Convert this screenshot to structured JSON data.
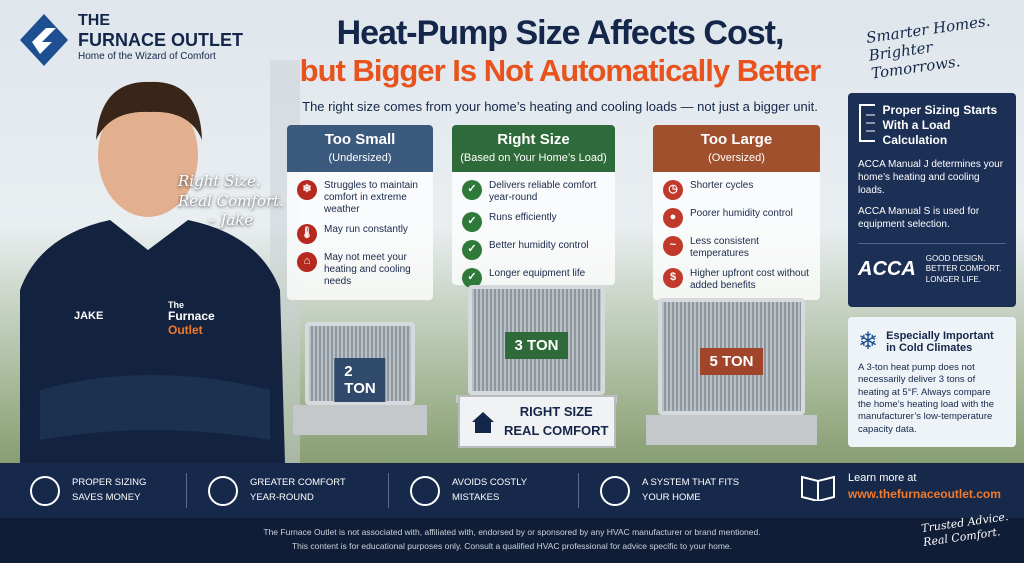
{
  "logo": {
    "line1": "THE",
    "line2": "FURNACE OUTLET",
    "tagline": "Home of the Wizard of Comfort"
  },
  "header": {
    "title_line1": "Heat-Pump Size Affects Cost,",
    "title_line2": "but Bigger Is Not Automatically Better",
    "subtitle": "The right size comes from your home’s heating and cooling loads — not just a bigger unit."
  },
  "slogan": [
    "Smarter Homes.",
    "Brighter Tomorrows."
  ],
  "quote": [
    "Right Size.",
    "Real Comfort.",
    "– Jake"
  ],
  "shirt": {
    "name": "JAKE",
    "brand": [
      "The",
      "Furnace",
      "Outlet"
    ]
  },
  "columns": [
    {
      "title": "Too Small",
      "subtitle": "(Undersized)",
      "items": [
        "Struggles to maintain comfort in extreme weather",
        "May run constantly",
        "May not meet your heating and cooling needs"
      ],
      "unit": "2 TON"
    },
    {
      "title": "Right Size",
      "subtitle": "(Based on Your Home’s Load)",
      "items": [
        "Delivers reliable comfort year-round",
        "Runs efficiently",
        "Better humidity control",
        "Longer equipment life"
      ],
      "unit": "3 TON"
    },
    {
      "title": "Too Large",
      "subtitle": "(Oversized)",
      "items": [
        "Shorter cycles",
        "Poorer humidity control",
        "Less consistent temperatures",
        "Higher upfront cost without added benefits"
      ],
      "unit": "5 TON"
    }
  ],
  "badge": [
    "RIGHT SIZE",
    "REAL COMFORT"
  ],
  "sidebar": {
    "load_title": "Proper Sizing Starts With a Load Calculation",
    "load_text": [
      "ACCA Manual J determines your home’s heating and cooling loads.",
      "ACCA Manual S is used for equipment selection."
    ],
    "acca": "ACCA",
    "acca_motto": [
      "GOOD DESIGN.",
      "BETTER COMFORT.",
      "LONGER LIFE."
    ],
    "cold_title": "Especially Important in Cold Climates",
    "cold_text": "A 3-ton heat pump does not necessarily deliver 3 tons of heating at 5°F. Always compare the home’s heating load with the manufacturer’s low-temperature capacity data."
  },
  "benefits": [
    [
      "PROPER SIZING",
      "SAVES MONEY"
    ],
    [
      "GREATER COMFORT",
      "YEAR-ROUND"
    ],
    [
      "AVOIDS COSTLY",
      "MISTAKES"
    ],
    [
      "A SYSTEM THAT FITS",
      "YOUR HOME"
    ]
  ],
  "learn_more": {
    "label": "Learn more at",
    "url": "www.thefurnaceoutlet.com"
  },
  "disclaimer": [
    "The Furnace Outlet is not associated with, affiliated with, endorsed by or sponsored by any HVAC manufacturer or brand mentioned.",
    "This content is for educational purposes only. Consult a qualified HVAC professional for advice specific to your home."
  ],
  "signoff": [
    "Trusted Advice.",
    "Real Comfort."
  ]
}
